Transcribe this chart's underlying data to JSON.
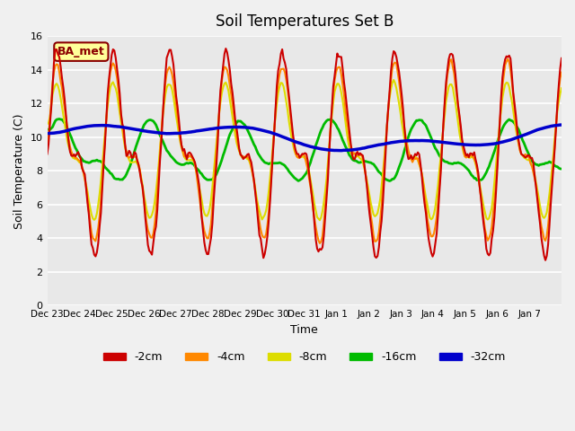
{
  "title": "Soil Temperatures Set B",
  "xlabel": "Time",
  "ylabel": "Soil Temperature (C)",
  "ylim": [
    0,
    16
  ],
  "yticks": [
    0,
    2,
    4,
    6,
    8,
    10,
    12,
    14,
    16
  ],
  "xtick_labels": [
    "Dec 23",
    "Dec 24",
    "Dec 25",
    "Dec 26",
    "Dec 27",
    "Dec 28",
    "Dec 29",
    "Dec 30",
    "Dec 31",
    "Jan 1",
    "Jan 2",
    "Jan 3",
    "Jan 4",
    "Jan 5",
    "Jan 6",
    "Jan 7"
  ],
  "legend_labels": [
    "-2cm",
    "-4cm",
    "-8cm",
    "-16cm",
    "-32cm"
  ],
  "colors": {
    "-2cm": "#cc0000",
    "-4cm": "#ff8800",
    "-8cm": "#dddd00",
    "-16cm": "#00bb00",
    "-32cm": "#0000cc"
  },
  "line_widths": {
    "-2cm": 1.5,
    "-4cm": 1.5,
    "-8cm": 1.5,
    "-16cm": 2.0,
    "-32cm": 2.5
  },
  "annotation_text": "BA_met",
  "annotation_color": "#8b0000",
  "annotation_bg": "#ffff99",
  "plot_bg_color": "#e8e8e8",
  "n_days": 16
}
